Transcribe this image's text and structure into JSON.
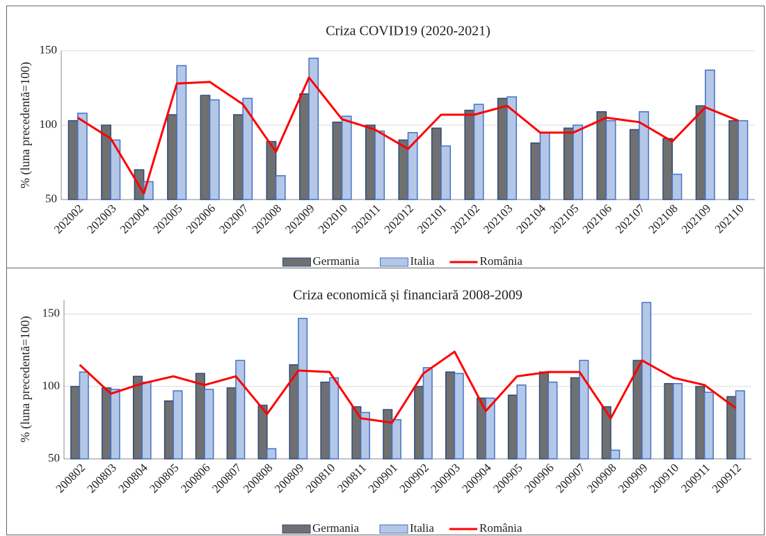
{
  "chart_data": [
    {
      "type": "bar",
      "title": "Criza COVID19  (2020-2021)",
      "y_label": "% (luna precedentă=100)",
      "categories": [
        "202002",
        "202003",
        "202004",
        "202005",
        "202006",
        "202007",
        "202008",
        "202009",
        "202010",
        "202011",
        "202012",
        "202101",
        "202102",
        "202103",
        "202104",
        "202105",
        "202106",
        "202107",
        "202108",
        "202109",
        "202110"
      ],
      "series": [
        {
          "name": "Germania",
          "type": "bar",
          "color": "#707070",
          "values": [
            103,
            100,
            70,
            107,
            120,
            107,
            89,
            121,
            102,
            100,
            90,
            98,
            110,
            118,
            88,
            98,
            109,
            97,
            91,
            113,
            103
          ]
        },
        {
          "name": "Italia",
          "type": "bar",
          "color": "#b4c7e7",
          "values": [
            108,
            90,
            62,
            140,
            117,
            118,
            66,
            145,
            106,
            96,
            95,
            86,
            114,
            119,
            95,
            100,
            103,
            109,
            67,
            137,
            103
          ]
        },
        {
          "name": "România",
          "type": "line",
          "color": "#ff0000",
          "values": [
            105,
            91,
            54,
            128,
            129,
            114,
            82,
            132,
            104,
            97,
            84,
            107,
            107,
            113,
            95,
            95,
            105,
            102,
            89,
            112,
            103
          ]
        }
      ],
      "ylim": [
        50,
        150
      ],
      "yticks": [
        50,
        100,
        150
      ],
      "grid": true,
      "legend": "bottom"
    },
    {
      "type": "bar",
      "title": "Criza economică și financiară 2008-2009",
      "y_label": "% (luna precedentă=100)",
      "categories": [
        "200802",
        "200803",
        "200804",
        "200805",
        "200806",
        "200807",
        "200808",
        "200809",
        "200810",
        "200811",
        "200901",
        "200902",
        "200903",
        "200904",
        "200905",
        "200906",
        "200907",
        "200908",
        "200909",
        "200910",
        "200911",
        "200912"
      ],
      "series": [
        {
          "name": "Germania",
          "type": "bar",
          "color": "#707070",
          "values": [
            100,
            99,
            107,
            90,
            109,
            99,
            87,
            115,
            103,
            86,
            84,
            100,
            110,
            92,
            94,
            110,
            106,
            86,
            118,
            102,
            100,
            93
          ]
        },
        {
          "name": "Italia",
          "type": "bar",
          "color": "#b4c7e7",
          "values": [
            110,
            98,
            103,
            97,
            98,
            118,
            57,
            147,
            106,
            82,
            77,
            113,
            109,
            92,
            101,
            103,
            118,
            56,
            158,
            102,
            96,
            97
          ]
        },
        {
          "name": "România",
          "type": "line",
          "color": "#ff0000",
          "values": [
            115,
            95,
            102,
            107,
            101,
            107,
            81,
            111,
            110,
            78,
            75,
            109,
            124,
            83,
            107,
            110,
            110,
            78,
            118,
            106,
            101,
            85
          ]
        }
      ],
      "ylim": [
        50,
        160
      ],
      "yticks": [
        50,
        100,
        150
      ],
      "grid": true,
      "legend": "bottom"
    }
  ]
}
